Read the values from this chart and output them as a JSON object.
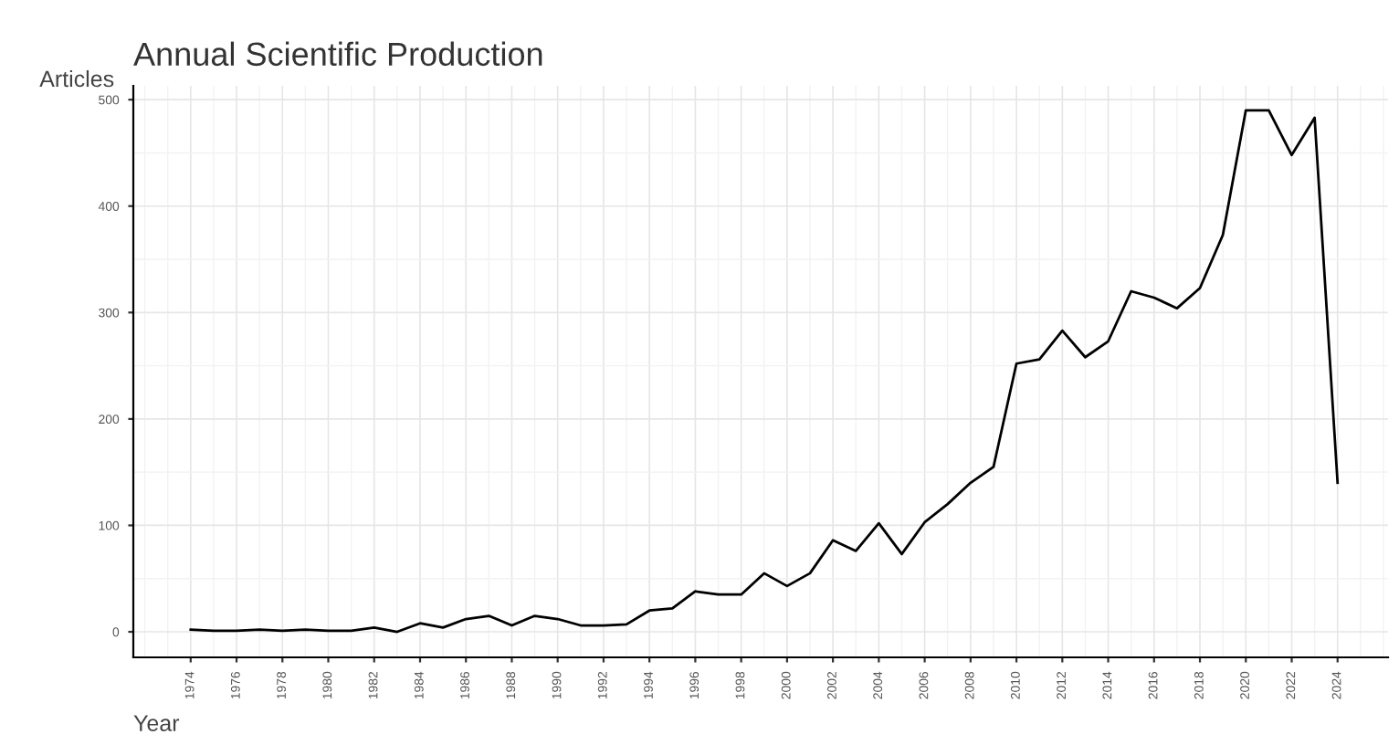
{
  "chart_data": {
    "type": "line",
    "title": "Annual Scientific Production",
    "xlabel": "Year",
    "ylabel": "Articles",
    "x": [
      1974,
      1975,
      1976,
      1977,
      1978,
      1979,
      1980,
      1981,
      1982,
      1983,
      1984,
      1985,
      1986,
      1987,
      1988,
      1989,
      1990,
      1991,
      1992,
      1993,
      1994,
      1995,
      1996,
      1997,
      1998,
      1999,
      2000,
      2001,
      2002,
      2003,
      2004,
      2005,
      2006,
      2007,
      2008,
      2009,
      2010,
      2011,
      2012,
      2013,
      2014,
      2015,
      2016,
      2017,
      2018,
      2019,
      2020,
      2021,
      2022,
      2023,
      2024
    ],
    "series": [
      {
        "color": "#000000",
        "values": [
          2,
          1,
          1,
          2,
          1,
          2,
          1,
          1,
          4,
          0,
          8,
          4,
          12,
          15,
          6,
          15,
          12,
          6,
          6,
          7,
          20,
          22,
          38,
          35,
          35,
          55,
          43,
          55,
          86,
          76,
          102,
          73,
          103,
          120,
          140,
          155,
          252,
          256,
          283,
          258,
          273,
          320,
          314,
          304,
          323,
          373,
          490,
          490,
          448,
          483,
          140
        ]
      }
    ],
    "xlim": [
      1971.5,
      2026.2
    ],
    "ylim": [
      -24,
      513
    ],
    "xticks": [
      1974,
      1976,
      1978,
      1980,
      1982,
      1984,
      1986,
      1988,
      1990,
      1992,
      1994,
      1996,
      1998,
      2000,
      2002,
      2004,
      2006,
      2008,
      2010,
      2012,
      2014,
      2016,
      2018,
      2020,
      2022,
      2024
    ],
    "yticks": [
      0,
      100,
      200,
      300,
      400,
      500
    ],
    "grid": true,
    "line_style": "solid",
    "marker": "none"
  }
}
